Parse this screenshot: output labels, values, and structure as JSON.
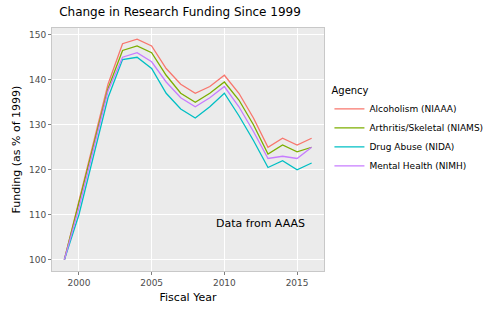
{
  "chart_data": {
    "type": "line",
    "title": "Change in Research Funding Since 1999",
    "x_label": "Fiscal Year",
    "y_label": "Funding (as % of 1999)",
    "legend_title": "Agency",
    "legend": "right",
    "grid": true,
    "x": [
      1999,
      2000,
      2001,
      2002,
      2003,
      2004,
      2005,
      2006,
      2007,
      2008,
      2009,
      2010,
      2011,
      2012,
      2013,
      2014,
      2015,
      2016
    ],
    "series": [
      {
        "name": "Alcoholism (NIAAA)",
        "color": "#F8766D",
        "values": [
          100,
          113,
          126,
          139,
          148,
          149,
          147.5,
          142.5,
          139,
          137,
          138.5,
          141,
          137,
          131.5,
          125,
          127,
          125.5,
          127
        ]
      },
      {
        "name": "Arthritis/Skeletal (NIAMS)",
        "color": "#7CAE00",
        "values": [
          100,
          112.5,
          125,
          138,
          146.5,
          147.5,
          146,
          141,
          137,
          135,
          137,
          139.5,
          135.5,
          130,
          123.5,
          125.5,
          124,
          125
        ]
      },
      {
        "name": "Drug Abuse (NIDA)",
        "color": "#00BFC4",
        "values": [
          100,
          110,
          123,
          136,
          144.5,
          145,
          142.5,
          137,
          133.5,
          131.5,
          134,
          137,
          132,
          126.5,
          120.5,
          122,
          120,
          121.5
        ]
      },
      {
        "name": "Mental Health (NIMH)",
        "color": "#C77CFF",
        "values": [
          100,
          111.5,
          124.5,
          137.5,
          145,
          146,
          144,
          139.5,
          136,
          134,
          136,
          138.5,
          134,
          128.5,
          122.5,
          123,
          122.5,
          125
        ]
      }
    ],
    "xlim": [
      1998.15,
      2016.85
    ],
    "xticks": [
      2000,
      2005,
      2010,
      2015
    ],
    "ylim": [
      97.5,
      151.5
    ],
    "yticks": [
      100,
      110,
      120,
      130,
      140,
      150
    ],
    "annotations": [
      {
        "text": "Data from AAAS",
        "x": 2012.5,
        "y": 108
      }
    ]
  }
}
